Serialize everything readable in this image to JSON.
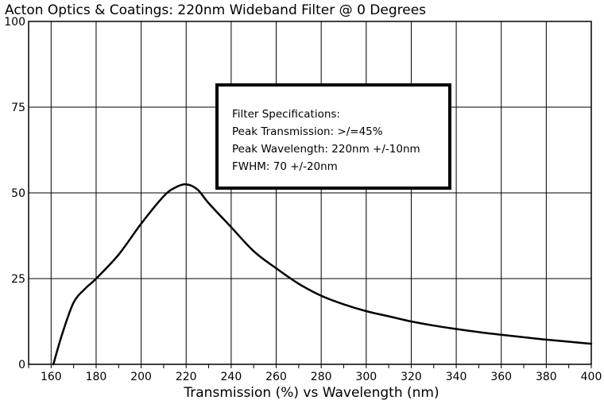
{
  "chart_data": {
    "type": "line",
    "title": "Acton Optics & Coatings: 220nm Wideband Filter @ 0 Degrees",
    "xlabel": "Transmission (%) vs Wavelength (nm)",
    "ylabel": "",
    "xlim": [
      150,
      400
    ],
    "ylim": [
      0,
      100
    ],
    "x_ticks": [
      160,
      180,
      200,
      220,
      240,
      260,
      280,
      300,
      320,
      340,
      360,
      380,
      400
    ],
    "y_ticks": [
      0,
      25,
      50,
      75,
      100
    ],
    "x_tick_labels": [
      "160",
      "180",
      "200",
      "220",
      "240",
      "260",
      "280",
      "300",
      "320",
      "340",
      "360",
      "380",
      "400"
    ],
    "y_tick_labels": [
      "0",
      "25",
      "50",
      "75",
      "100"
    ],
    "grid": true,
    "series": [
      {
        "x": [
          161,
          165,
          170,
          175,
          180,
          190,
          200,
          210,
          215,
          220,
          225,
          230,
          240,
          250,
          260,
          270,
          280,
          290,
          300,
          310,
          320,
          330,
          340,
          350,
          360,
          370,
          380,
          390,
          400
        ],
        "y": [
          0,
          9,
          18,
          22,
          25,
          32,
          41,
          49,
          51.5,
          52.5,
          51,
          47,
          40,
          33,
          28,
          23.5,
          20,
          17.5,
          15.5,
          14,
          12.5,
          11.3,
          10.3,
          9.4,
          8.6,
          7.9,
          7.2,
          6.6,
          6
        ]
      }
    ],
    "annotations": [
      "Filter Specifications:",
      "Peak Transmission: >/=45%",
      "Peak Wavelength: 220nm +/-10nm",
      "FWHM: 70 +/-20nm"
    ]
  }
}
